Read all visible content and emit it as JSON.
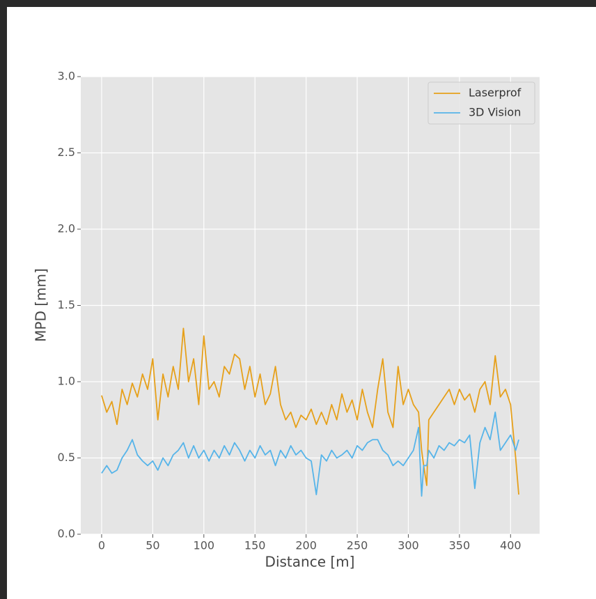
{
  "chart_data": {
    "type": "line",
    "xlabel": "Distance [m]",
    "ylabel": "MPD [mm]",
    "x": [
      0,
      5,
      10,
      15,
      20,
      25,
      30,
      35,
      40,
      45,
      50,
      55,
      60,
      65,
      70,
      75,
      80,
      85,
      90,
      95,
      100,
      105,
      110,
      115,
      120,
      125,
      130,
      135,
      140,
      145,
      150,
      155,
      160,
      165,
      170,
      175,
      180,
      185,
      190,
      195,
      200,
      205,
      210,
      215,
      220,
      225,
      230,
      235,
      240,
      245,
      250,
      255,
      260,
      265,
      270,
      275,
      280,
      285,
      290,
      295,
      300,
      305,
      310,
      313,
      315,
      318,
      320,
      325,
      330,
      335,
      340,
      345,
      350,
      355,
      360,
      365,
      370,
      375,
      380,
      385,
      390,
      395,
      400,
      405,
      408
    ],
    "series": [
      {
        "name": "Laserprof",
        "color": "#e6a01a",
        "values": [
          0.91,
          0.8,
          0.87,
          0.72,
          0.95,
          0.85,
          0.99,
          0.9,
          1.05,
          0.95,
          1.15,
          0.75,
          1.05,
          0.9,
          1.1,
          0.95,
          1.35,
          1.0,
          1.15,
          0.85,
          1.3,
          0.95,
          1.0,
          0.9,
          1.1,
          1.05,
          1.18,
          1.15,
          0.95,
          1.1,
          0.9,
          1.05,
          0.85,
          0.92,
          1.1,
          0.85,
          0.75,
          0.8,
          0.7,
          0.78,
          0.75,
          0.82,
          0.72,
          0.8,
          0.72,
          0.85,
          0.75,
          0.92,
          0.8,
          0.88,
          0.75,
          0.95,
          0.8,
          0.7,
          0.95,
          1.15,
          0.8,
          0.7,
          1.1,
          0.85,
          0.95,
          0.85,
          0.8,
          0.55,
          0.45,
          0.32,
          0.75,
          0.8,
          0.85,
          0.9,
          0.95,
          0.85,
          0.95,
          0.88,
          0.92,
          0.8,
          0.95,
          1.0,
          0.85,
          1.17,
          0.9,
          0.95,
          0.85,
          0.5,
          0.26
        ]
      },
      {
        "name": "3D Vision",
        "color": "#56b4e9",
        "values": [
          0.4,
          0.45,
          0.4,
          0.42,
          0.5,
          0.55,
          0.62,
          0.52,
          0.48,
          0.45,
          0.48,
          0.42,
          0.5,
          0.45,
          0.52,
          0.55,
          0.6,
          0.5,
          0.58,
          0.5,
          0.55,
          0.48,
          0.55,
          0.5,
          0.58,
          0.52,
          0.6,
          0.55,
          0.48,
          0.55,
          0.5,
          0.58,
          0.52,
          0.55,
          0.45,
          0.55,
          0.5,
          0.58,
          0.52,
          0.55,
          0.5,
          0.48,
          0.26,
          0.52,
          0.48,
          0.55,
          0.5,
          0.52,
          0.55,
          0.5,
          0.58,
          0.55,
          0.6,
          0.62,
          0.62,
          0.55,
          0.52,
          0.45,
          0.48,
          0.45,
          0.5,
          0.55,
          0.7,
          0.25,
          0.45,
          0.45,
          0.55,
          0.5,
          0.58,
          0.55,
          0.6,
          0.58,
          0.62,
          0.6,
          0.65,
          0.3,
          0.6,
          0.7,
          0.62,
          0.8,
          0.55,
          0.6,
          0.65,
          0.55,
          0.62
        ]
      }
    ],
    "xlim": [
      -20.4,
      428.4
    ],
    "xticks": [
      0,
      50,
      100,
      150,
      200,
      250,
      300,
      350,
      400
    ],
    "ylim": [
      0,
      3
    ],
    "yticks": [
      {
        "value": 0,
        "label": "0.0"
      },
      0.5,
      {
        "value": 1,
        "label": "1.0"
      },
      1.5,
      {
        "value": 2,
        "label": "2.0"
      },
      2.5,
      {
        "value": 3,
        "label": "3.0"
      }
    ],
    "grid": true,
    "legend": "upper right"
  }
}
